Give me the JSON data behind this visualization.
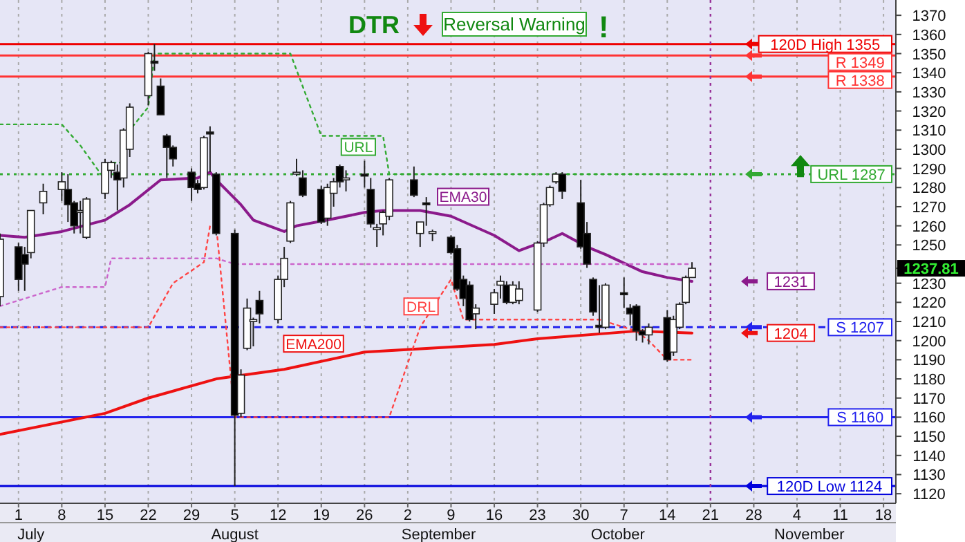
{
  "chart_data": {
    "type": "candlestick",
    "title": "DTR",
    "subtitle": "Reversal Warning",
    "annotations": [
      "!",
      {
        "text": "1231",
        "x": "--11-03",
        "y": 1231
      },
      {
        "text": "1204",
        "x": "--11-03",
        "y": 1204
      }
    ],
    "x": [
      "--06-28",
      "--07-01",
      "--07-02",
      "--07-03",
      "--07-05",
      "--07-08",
      "--07-09",
      "--07-10",
      "--07-11",
      "--07-12",
      "--07-15",
      "--07-16",
      "--07-17",
      "--07-18",
      "--07-19",
      "--07-22",
      "--07-23",
      "--07-24",
      "--07-25",
      "--07-26",
      "--07-29",
      "--07-30",
      "--07-31",
      "--08-01",
      "--08-02",
      "--08-05",
      "--08-06",
      "--08-07",
      "--08-08",
      "--08-09",
      "--08-12",
      "--08-13",
      "--08-14",
      "--08-15",
      "--08-16",
      "--08-19",
      "--08-20",
      "--08-21",
      "--08-22",
      "--08-23",
      "--08-26",
      "--08-27",
      "--08-28",
      "--08-29",
      "--08-30",
      "--09-03",
      "--09-04",
      "--09-05",
      "--09-06",
      "--09-09",
      "--09-10",
      "--09-11",
      "--09-12",
      "--09-13",
      "--09-16",
      "--09-17",
      "--09-18",
      "--09-19",
      "--09-20",
      "--09-23",
      "--09-24",
      "--09-25",
      "--09-26",
      "--09-27",
      "--09-30",
      "--10-01",
      "--10-02",
      "--10-03",
      "--10-04",
      "--10-07",
      "--10-08",
      "--10-09",
      "--10-10",
      "--10-11",
      "--10-14",
      "--10-15",
      "--10-16",
      "--10-17",
      "--10-18"
    ],
    "ohlc": [
      [
        1223,
        1256,
        1218,
        1253
      ],
      [
        1249,
        1251,
        1226,
        1232
      ],
      [
        1245,
        1249,
        1226,
        1240
      ],
      [
        1246,
        1268,
        1243,
        1268
      ],
      [
        1272,
        1282,
        1266,
        1278
      ],
      [
        1279,
        1288,
        1273,
        1283
      ],
      [
        1279,
        1287,
        1262,
        1271
      ],
      [
        1272,
        1273,
        1256,
        1260
      ],
      [
        1267,
        1273,
        1256,
        1268
      ],
      [
        1254,
        1275,
        1253,
        1274
      ],
      [
        1277,
        1295,
        1274,
        1293
      ],
      [
        1289,
        1294,
        1285,
        1293
      ],
      [
        1288,
        1292,
        1268,
        1284
      ],
      [
        1285,
        1311,
        1280,
        1310
      ],
      [
        1300,
        1324,
        1296,
        1322
      ],
      [
        1328,
        1351,
        1323,
        1350
      ],
      [
        1346,
        1355,
        1341,
        1345
      ],
      [
        1333,
        1337,
        1318,
        1318
      ],
      [
        1307,
        1308,
        1285,
        1301
      ],
      [
        1301,
        1302,
        1291,
        1295
      ],
      [
        1288,
        1290,
        1273,
        1280
      ],
      [
        1282,
        1284,
        1277,
        1279
      ],
      [
        1280,
        1307,
        1279,
        1306
      ],
      [
        1309,
        1312,
        1288,
        1308
      ],
      [
        1287,
        1288,
        1255,
        1256
      ],
      [
        1256,
        1258,
        1124,
        1161
      ],
      [
        1162,
        1185,
        1160,
        1182
      ],
      [
        1196,
        1222,
        1195,
        1217
      ],
      [
        1210,
        1212,
        1197,
        1211
      ],
      [
        1221,
        1226,
        1209,
        1214
      ],
      [
        1211,
        1234,
        1209,
        1232
      ],
      [
        1232,
        1249,
        1228,
        1243
      ],
      [
        1252,
        1273,
        1251,
        1272
      ],
      [
        1287,
        1295,
        1286,
        1288
      ],
      [
        1285,
        1289,
        1275,
        1276
      ],
      [
        1279,
        1281,
        1261,
        1262
      ],
      [
        1264,
        1282,
        1260,
        1280
      ],
      [
        1277,
        1285,
        1270,
        1283
      ],
      [
        1291,
        1292,
        1280,
        1283
      ],
      [
        1284,
        1289,
        1278,
        1285
      ],
      [
        1287,
        1294,
        1280,
        1286
      ],
      [
        1279,
        1285,
        1259,
        1261
      ],
      [
        1258,
        1261,
        1249,
        1259
      ],
      [
        1261,
        1268,
        1255,
        1267
      ],
      [
        1265,
        1285,
        1263,
        1284
      ],
      [
        1284,
        1291,
        1275,
        1276
      ],
      [
        1256,
        1262,
        1249,
        1262
      ],
      [
        1272,
        1275,
        1260,
        1271
      ],
      [
        1256,
        1258,
        1252,
        1257
      ],
      [
        1254,
        1255,
        1245,
        1246
      ],
      [
        1248,
        1250,
        1226,
        1227
      ],
      [
        1232,
        1234,
        1218,
        1222
      ],
      [
        1229,
        1231,
        1210,
        1211
      ],
      [
        1214,
        1219,
        1206,
        1217
      ],
      [
        1219,
        1227,
        1214,
        1225
      ],
      [
        1229,
        1234,
        1222,
        1231
      ],
      [
        1229,
        1231,
        1219,
        1220
      ],
      [
        1220,
        1231,
        1219,
        1229
      ],
      [
        1221,
        1231,
        1219,
        1227
      ],
      [
        1216,
        1252,
        1215,
        1251
      ],
      [
        1251,
        1272,
        1249,
        1271
      ],
      [
        1271,
        1281,
        1270,
        1280
      ],
      [
        1283,
        1288,
        1282,
        1287
      ],
      [
        1287,
        1288,
        1274,
        1278
      ],
      [
        1272,
        1284,
        1248,
        1249
      ],
      [
        1256,
        1262,
        1238,
        1240
      ],
      [
        1232,
        1233,
        1213,
        1215
      ],
      [
        1208,
        1229,
        1204,
        1207
      ],
      [
        1207,
        1230,
        1206,
        1229
      ],
      [
        1225,
        1233,
        1217,
        1224
      ],
      [
        1217,
        1219,
        1208,
        1214
      ],
      [
        1218,
        1219,
        1200,
        1205
      ],
      [
        1205,
        1206,
        1199,
        1203
      ],
      [
        1203,
        1209,
        1198,
        1207
      ],
      [
        1212,
        1216,
        1189,
        1190
      ],
      [
        1194,
        1213,
        1192,
        1211
      ],
      [
        1207,
        1220,
        1206,
        1219
      ],
      [
        1220,
        1234,
        1219,
        1233
      ],
      [
        1233,
        1241,
        1233,
        1237.81
      ]
    ],
    "series": [
      {
        "name": "EMA30",
        "type": "line",
        "color": "#8b1a8b",
        "x": [
          "--06-28",
          "--07-02",
          "--07-08",
          "--07-15",
          "--07-19",
          "--07-24",
          "--07-30",
          "--08-01",
          "--08-02",
          "--08-06",
          "--08-08",
          "--08-13",
          "--08-15",
          "--08-20",
          "--08-26",
          "--08-29",
          "--09-04",
          "--09-09",
          "--09-16",
          "--09-20",
          "--09-25",
          "--09-27",
          "--10-01",
          "--10-04",
          "--10-10",
          "--10-14",
          "--10-18"
        ],
        "values": [
          1255,
          1254,
          1257,
          1263,
          1271,
          1284,
          1285,
          1288,
          1284,
          1271,
          1263,
          1257,
          1260,
          1263,
          1267,
          1268,
          1268,
          1265,
          1255,
          1247,
          1253,
          1256,
          1249,
          1245,
          1236,
          1233,
          1231
        ]
      },
      {
        "name": "EMA200",
        "type": "line",
        "color": "#ee1111",
        "x": [
          "--06-28",
          "--07-15",
          "--07-22",
          "--08-02",
          "--08-13",
          "--08-26",
          "--09-16",
          "--09-23",
          "--10-09",
          "--10-18"
        ],
        "values": [
          1151,
          1162,
          1170,
          1180,
          1185,
          1194,
          1198,
          1201,
          1205,
          1204
        ]
      },
      {
        "name": "URL",
        "type": "line",
        "line_style": "dotted",
        "color": "#33aa33",
        "x": [
          "--06-28",
          "--07-08",
          "--07-11",
          "--07-15",
          "--07-16",
          "--07-18",
          "--07-19",
          "--07-22",
          "--07-23",
          "--08-14",
          "--08-19",
          "--08-29",
          "--08-30",
          "--10-18"
        ],
        "values": [
          1313,
          1313,
          1302,
          1284,
          1293,
          1293,
          1310,
          1322,
          1350,
          1350,
          1307,
          1307,
          1287,
          1287
        ]
      },
      {
        "name": "DRL",
        "type": "line",
        "line_style": "dotted",
        "color": "#ff4444",
        "x": [
          "--06-28",
          "--07-22",
          "--07-26",
          "--07-31",
          "--08-01",
          "--08-02",
          "--08-05",
          "--08-30",
          "--09-04",
          "--09-09",
          "--09-11",
          "--10-03",
          "--10-09",
          "--10-11",
          "--10-14",
          "--10-18"
        ],
        "values": [
          1207,
          1207,
          1230,
          1241,
          1260,
          1260,
          1160,
          1160,
          1207,
          1232,
          1211,
          1211,
          1205,
          1200,
          1190,
          1190
        ]
      },
      {
        "type": "line",
        "line_style": "dotted",
        "color": "#cc66cc",
        "x": [
          "--06-28",
          "--07-08",
          "--07-15",
          "--07-16",
          "--08-02",
          "--08-05",
          "--10-18"
        ],
        "values": [
          1218,
          1228,
          1228,
          1243,
          1243,
          1240,
          1240
        ]
      }
    ],
    "xlim": [
      "--06-28",
      "--11-20"
    ],
    "xticks": [
      {
        "value": "--07-01",
        "label": "1"
      },
      {
        "value": "--07-08",
        "label": "8"
      },
      {
        "value": "--07-15",
        "label": "15"
      },
      {
        "value": "--07-22",
        "label": "22"
      },
      {
        "value": "--07-29",
        "label": "29"
      },
      {
        "value": "--08-05",
        "label": "5"
      },
      {
        "value": "--08-12",
        "label": "12"
      },
      {
        "value": "--08-19",
        "label": "19"
      },
      {
        "value": "--08-26",
        "label": "26"
      },
      {
        "value": "--09-02",
        "label": "2"
      },
      {
        "value": "--09-09",
        "label": "9"
      },
      {
        "value": "--09-16",
        "label": "16"
      },
      {
        "value": "--09-23",
        "label": "23"
      },
      {
        "value": "--09-30",
        "label": "30"
      },
      {
        "value": "--10-07",
        "label": "7"
      },
      {
        "value": "--10-14",
        "label": "14"
      },
      {
        "value": "--10-21",
        "label": "21"
      },
      {
        "value": "--10-28",
        "label": "28"
      },
      {
        "value": "--11-04",
        "label": "4"
      },
      {
        "value": "--11-11",
        "label": "11"
      },
      {
        "value": "--11-18",
        "label": "18"
      }
    ],
    "x2lim": [
      "--06-28",
      "--11-20"
    ],
    "x2ticks": [
      {
        "value": "--07-03",
        "label": "July"
      },
      {
        "value": "--08-05",
        "label": "August"
      },
      {
        "value": "--09-07",
        "label": "September"
      },
      {
        "value": "--10-06",
        "label": "October"
      },
      {
        "value": "--11-06",
        "label": "November"
      }
    ],
    "ylim": [
      1115,
      1378
    ],
    "yticks": [
      1120,
      1130,
      1140,
      1150,
      1160,
      1170,
      1180,
      1190,
      1200,
      1210,
      1220,
      1230,
      {
        "value": 1237.81,
        "label": "1237.81"
      },
      1250,
      1260,
      1270,
      1280,
      1290,
      1300,
      1310,
      1320,
      1330,
      1340,
      1350,
      1360,
      1370
    ],
    "grid": "x",
    "ref_lines": [
      {
        "axis": "y",
        "value": 1355,
        "label": "120D High 1355",
        "color": "#ee0000"
      },
      {
        "axis": "y",
        "value": 1349,
        "label": "R 1349",
        "color": "#ff3333"
      },
      {
        "axis": "y",
        "value": 1338,
        "label": "R 1338",
        "color": "#ff3333"
      },
      {
        "axis": "y",
        "value": 1287,
        "label": "URL 1287",
        "color": "#33aa33",
        "line_style": "dotted"
      },
      {
        "axis": "y",
        "value": 1207,
        "label": "S 1207",
        "color": "#2222ee",
        "line_style": "dashed"
      },
      {
        "axis": "y",
        "value": 1160,
        "label": "S 1160",
        "color": "#2222ee"
      },
      {
        "axis": "y",
        "value": 1124,
        "label": "120D Low 1124",
        "color": "#0000dd"
      },
      {
        "axis": "x",
        "value": "--10-21",
        "label": null,
        "color": "#993399",
        "line_style": "dotted"
      }
    ]
  }
}
